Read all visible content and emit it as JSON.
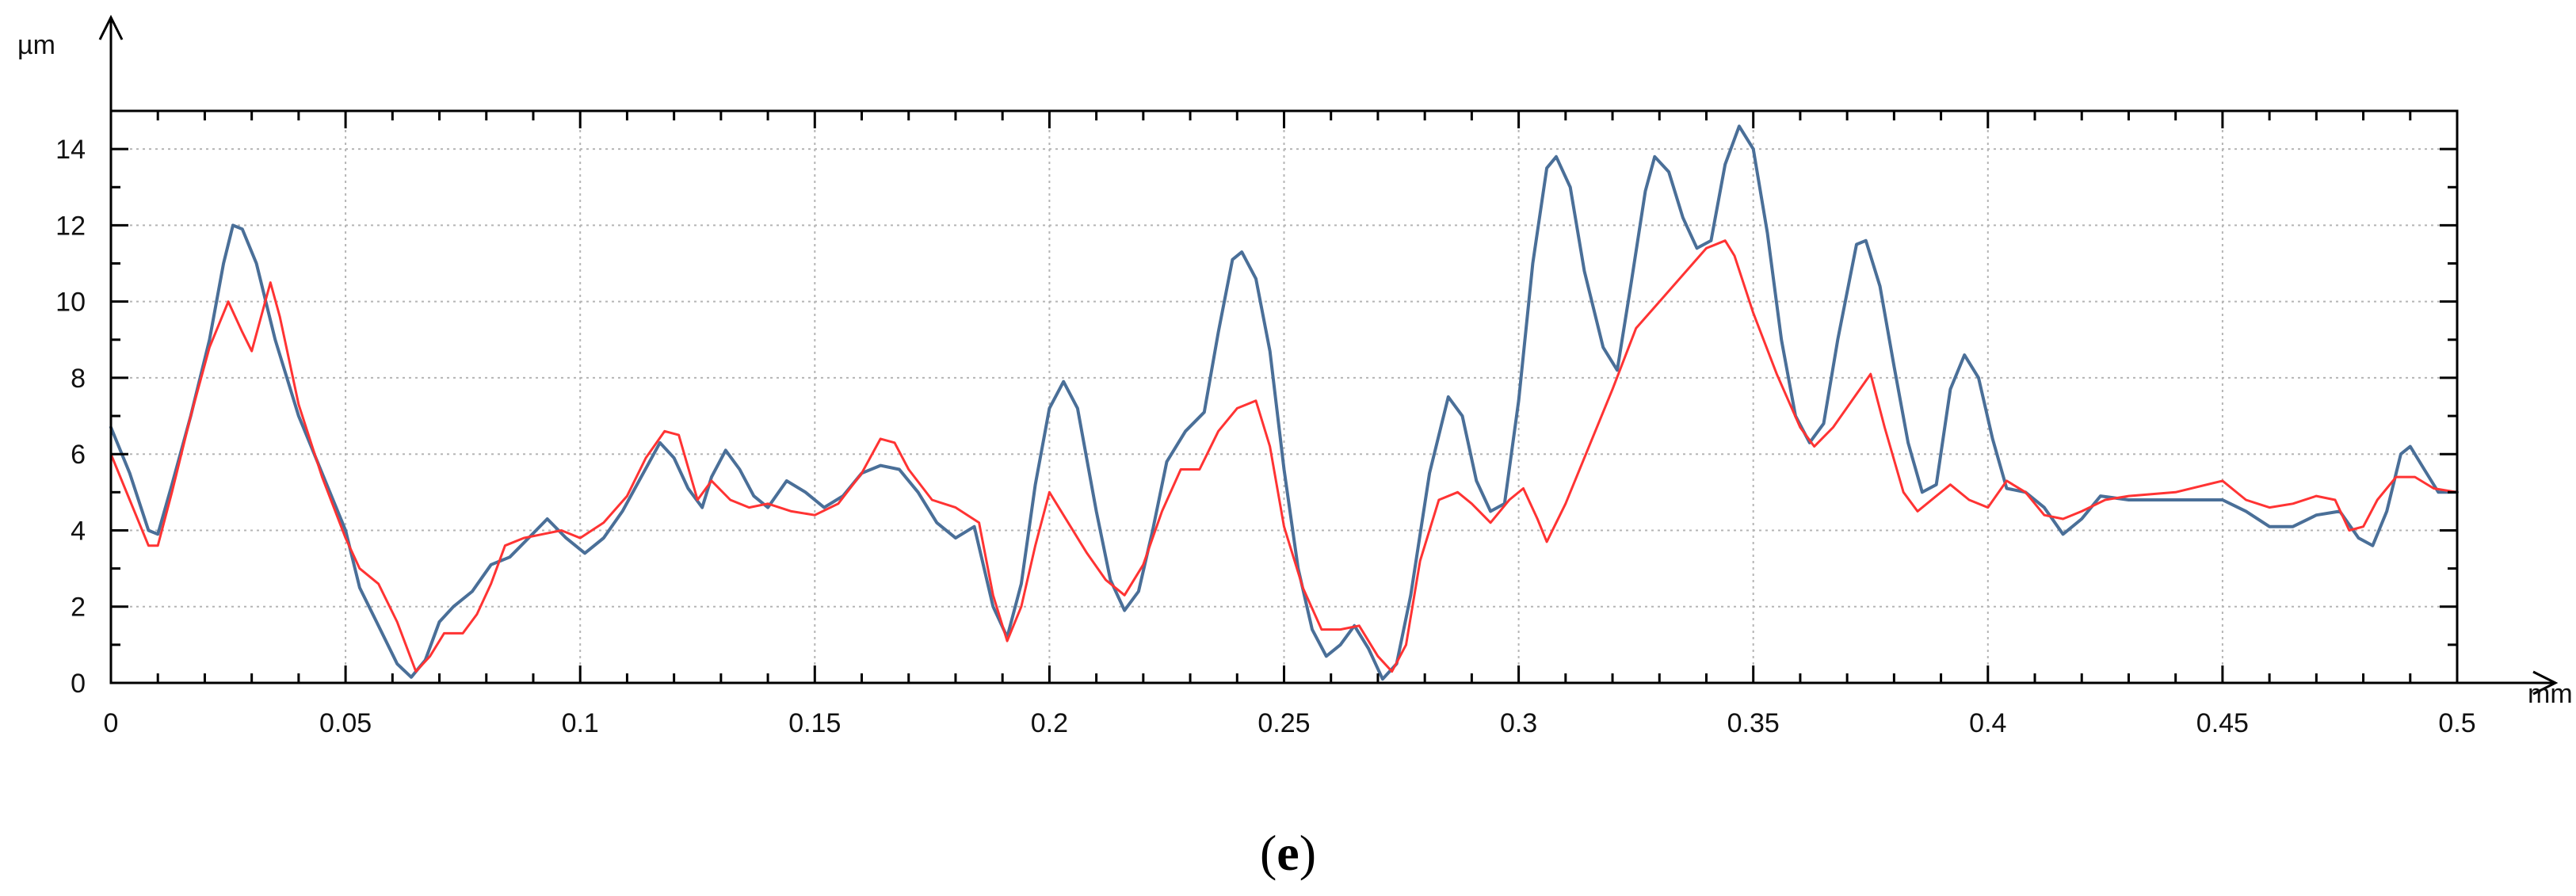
{
  "chart_data": {
    "type": "line",
    "title": "",
    "xlabel": "",
    "ylabel": "",
    "x_unit": "mm",
    "y_unit": "µm",
    "xlim": [
      0,
      0.5
    ],
    "ylim": [
      0,
      15
    ],
    "x_ticks": [
      0,
      0.05,
      0.1,
      0.15,
      0.2,
      0.25,
      0.3,
      0.35,
      0.4,
      0.45,
      0.5
    ],
    "x_tick_labels": [
      "0",
      "0.05",
      "0.1",
      "0.15",
      "0.2",
      "0.25",
      "0.3",
      "0.35",
      "0.4",
      "0.45",
      "0.5"
    ],
    "y_ticks": [
      0,
      2,
      4,
      6,
      8,
      10,
      12,
      14
    ],
    "y_tick_labels": [
      "0",
      "2",
      "4",
      "6",
      "8",
      "10",
      "12",
      "14"
    ],
    "grid": true,
    "legend": "none",
    "series": [
      {
        "color": "#4a6f98",
        "points": [
          [
            0,
            6.7
          ],
          [
            0.004,
            5.5
          ],
          [
            0.008,
            4.0
          ],
          [
            0.01,
            3.9
          ],
          [
            0.013,
            5.2
          ],
          [
            0.017,
            7.0
          ],
          [
            0.021,
            9.0
          ],
          [
            0.024,
            11.0
          ],
          [
            0.026,
            12.0
          ],
          [
            0.028,
            11.9
          ],
          [
            0.031,
            11.0
          ],
          [
            0.035,
            9.0
          ],
          [
            0.04,
            7.0
          ],
          [
            0.045,
            5.5
          ],
          [
            0.05,
            4.0
          ],
          [
            0.053,
            2.5
          ],
          [
            0.057,
            1.5
          ],
          [
            0.061,
            0.5
          ],
          [
            0.064,
            0.15
          ],
          [
            0.067,
            0.6
          ],
          [
            0.07,
            1.6
          ],
          [
            0.073,
            2.0
          ],
          [
            0.077,
            2.4
          ],
          [
            0.081,
            3.1
          ],
          [
            0.085,
            3.3
          ],
          [
            0.089,
            3.8
          ],
          [
            0.093,
            4.3
          ],
          [
            0.097,
            3.8
          ],
          [
            0.101,
            3.4
          ],
          [
            0.105,
            3.8
          ],
          [
            0.109,
            4.5
          ],
          [
            0.113,
            5.4
          ],
          [
            0.117,
            6.3
          ],
          [
            0.12,
            5.9
          ],
          [
            0.123,
            5.1
          ],
          [
            0.126,
            4.6
          ],
          [
            0.128,
            5.4
          ],
          [
            0.131,
            6.1
          ],
          [
            0.134,
            5.6
          ],
          [
            0.137,
            4.9
          ],
          [
            0.14,
            4.6
          ],
          [
            0.144,
            5.3
          ],
          [
            0.148,
            5.0
          ],
          [
            0.152,
            4.6
          ],
          [
            0.156,
            4.9
          ],
          [
            0.16,
            5.5
          ],
          [
            0.164,
            5.7
          ],
          [
            0.168,
            5.6
          ],
          [
            0.172,
            5.0
          ],
          [
            0.176,
            4.2
          ],
          [
            0.18,
            3.8
          ],
          [
            0.184,
            4.1
          ],
          [
            0.188,
            2.0
          ],
          [
            0.191,
            1.2
          ],
          [
            0.194,
            2.6
          ],
          [
            0.197,
            5.2
          ],
          [
            0.2,
            7.2
          ],
          [
            0.203,
            7.9
          ],
          [
            0.206,
            7.2
          ],
          [
            0.21,
            4.5
          ],
          [
            0.213,
            2.7
          ],
          [
            0.216,
            1.9
          ],
          [
            0.219,
            2.4
          ],
          [
            0.222,
            4.0
          ],
          [
            0.225,
            5.8
          ],
          [
            0.229,
            6.6
          ],
          [
            0.233,
            7.1
          ],
          [
            0.236,
            9.2
          ],
          [
            0.239,
            11.1
          ],
          [
            0.241,
            11.3
          ],
          [
            0.244,
            10.6
          ],
          [
            0.247,
            8.7
          ],
          [
            0.25,
            5.6
          ],
          [
            0.253,
            3.0
          ],
          [
            0.256,
            1.4
          ],
          [
            0.259,
            0.7
          ],
          [
            0.262,
            1.0
          ],
          [
            0.265,
            1.5
          ],
          [
            0.268,
            0.9
          ],
          [
            0.271,
            0.1
          ],
          [
            0.274,
            0.5
          ],
          [
            0.277,
            2.3
          ],
          [
            0.281,
            5.5
          ],
          [
            0.285,
            7.5
          ],
          [
            0.288,
            7.0
          ],
          [
            0.291,
            5.3
          ],
          [
            0.294,
            4.5
          ],
          [
            0.297,
            4.7
          ],
          [
            0.3,
            7.4
          ],
          [
            0.303,
            11.0
          ],
          [
            0.306,
            13.5
          ],
          [
            0.308,
            13.8
          ],
          [
            0.311,
            13.0
          ],
          [
            0.314,
            10.8
          ],
          [
            0.318,
            8.8
          ],
          [
            0.321,
            8.2
          ],
          [
            0.324,
            10.5
          ],
          [
            0.327,
            12.9
          ],
          [
            0.329,
            13.8
          ],
          [
            0.332,
            13.4
          ],
          [
            0.335,
            12.2
          ],
          [
            0.338,
            11.4
          ],
          [
            0.341,
            11.6
          ],
          [
            0.344,
            13.6
          ],
          [
            0.347,
            14.6
          ],
          [
            0.35,
            14.0
          ],
          [
            0.353,
            11.8
          ],
          [
            0.356,
            9.0
          ],
          [
            0.359,
            7.0
          ],
          [
            0.362,
            6.3
          ],
          [
            0.365,
            6.8
          ],
          [
            0.368,
            9.0
          ],
          [
            0.372,
            11.5
          ],
          [
            0.374,
            11.6
          ],
          [
            0.377,
            10.4
          ],
          [
            0.38,
            8.3
          ],
          [
            0.383,
            6.3
          ],
          [
            0.386,
            5.0
          ],
          [
            0.389,
            5.2
          ],
          [
            0.392,
            7.7
          ],
          [
            0.395,
            8.6
          ],
          [
            0.398,
            8.0
          ],
          [
            0.401,
            6.4
          ],
          [
            0.404,
            5.1
          ],
          [
            0.408,
            5.0
          ],
          [
            0.412,
            4.6
          ],
          [
            0.416,
            3.9
          ],
          [
            0.42,
            4.3
          ],
          [
            0.424,
            4.9
          ],
          [
            0.43,
            4.8
          ],
          [
            0.44,
            4.8
          ],
          [
            0.45,
            4.8
          ],
          [
            0.455,
            4.5
          ],
          [
            0.46,
            4.1
          ],
          [
            0.465,
            4.1
          ],
          [
            0.47,
            4.4
          ],
          [
            0.475,
            4.5
          ],
          [
            0.479,
            3.8
          ],
          [
            0.482,
            3.6
          ],
          [
            0.485,
            4.5
          ],
          [
            0.488,
            6.0
          ],
          [
            0.49,
            6.2
          ],
          [
            0.493,
            5.6
          ],
          [
            0.496,
            5.0
          ],
          [
            0.5,
            5.0
          ]
        ]
      },
      {
        "color": "#ff3333",
        "points": [
          [
            0,
            6.0
          ],
          [
            0.004,
            4.8
          ],
          [
            0.008,
            3.6
          ],
          [
            0.01,
            3.6
          ],
          [
            0.013,
            5.0
          ],
          [
            0.017,
            7.0
          ],
          [
            0.021,
            8.8
          ],
          [
            0.025,
            10.0
          ],
          [
            0.028,
            9.2
          ],
          [
            0.03,
            8.7
          ],
          [
            0.032,
            9.6
          ],
          [
            0.034,
            10.5
          ],
          [
            0.036,
            9.6
          ],
          [
            0.04,
            7.3
          ],
          [
            0.045,
            5.4
          ],
          [
            0.05,
            3.8
          ],
          [
            0.053,
            3.0
          ],
          [
            0.057,
            2.6
          ],
          [
            0.061,
            1.6
          ],
          [
            0.065,
            0.3
          ],
          [
            0.068,
            0.7
          ],
          [
            0.071,
            1.3
          ],
          [
            0.075,
            1.3
          ],
          [
            0.078,
            1.8
          ],
          [
            0.081,
            2.6
          ],
          [
            0.084,
            3.6
          ],
          [
            0.088,
            3.8
          ],
          [
            0.092,
            3.9
          ],
          [
            0.096,
            4.0
          ],
          [
            0.1,
            3.8
          ],
          [
            0.105,
            4.2
          ],
          [
            0.11,
            4.9
          ],
          [
            0.114,
            5.9
          ],
          [
            0.118,
            6.6
          ],
          [
            0.121,
            6.5
          ],
          [
            0.125,
            4.8
          ],
          [
            0.128,
            5.3
          ],
          [
            0.132,
            4.8
          ],
          [
            0.136,
            4.6
          ],
          [
            0.14,
            4.7
          ],
          [
            0.145,
            4.5
          ],
          [
            0.15,
            4.4
          ],
          [
            0.155,
            4.7
          ],
          [
            0.16,
            5.5
          ],
          [
            0.164,
            6.4
          ],
          [
            0.167,
            6.3
          ],
          [
            0.17,
            5.6
          ],
          [
            0.175,
            4.8
          ],
          [
            0.18,
            4.6
          ],
          [
            0.185,
            4.2
          ],
          [
            0.188,
            2.3
          ],
          [
            0.191,
            1.1
          ],
          [
            0.194,
            2.0
          ],
          [
            0.197,
            3.6
          ],
          [
            0.2,
            5.0
          ],
          [
            0.204,
            4.2
          ],
          [
            0.208,
            3.4
          ],
          [
            0.212,
            2.7
          ],
          [
            0.216,
            2.3
          ],
          [
            0.22,
            3.1
          ],
          [
            0.224,
            4.5
          ],
          [
            0.228,
            5.6
          ],
          [
            0.232,
            5.6
          ],
          [
            0.236,
            6.6
          ],
          [
            0.24,
            7.2
          ],
          [
            0.244,
            7.4
          ],
          [
            0.247,
            6.2
          ],
          [
            0.25,
            4.1
          ],
          [
            0.254,
            2.5
          ],
          [
            0.258,
            1.4
          ],
          [
            0.262,
            1.4
          ],
          [
            0.266,
            1.5
          ],
          [
            0.27,
            0.7
          ],
          [
            0.273,
            0.3
          ],
          [
            0.276,
            1.0
          ],
          [
            0.279,
            3.2
          ],
          [
            0.283,
            4.8
          ],
          [
            0.287,
            5.0
          ],
          [
            0.29,
            4.7
          ],
          [
            0.294,
            4.2
          ],
          [
            0.298,
            4.8
          ],
          [
            0.301,
            5.1
          ],
          [
            0.304,
            4.3
          ],
          [
            0.306,
            3.7
          ],
          [
            0.31,
            4.7
          ],
          [
            0.315,
            6.2
          ],
          [
            0.32,
            7.7
          ],
          [
            0.325,
            9.3
          ],
          [
            0.33,
            10.0
          ],
          [
            0.335,
            10.7
          ],
          [
            0.34,
            11.4
          ],
          [
            0.344,
            11.6
          ],
          [
            0.346,
            11.2
          ],
          [
            0.35,
            9.7
          ],
          [
            0.355,
            8.1
          ],
          [
            0.36,
            6.7
          ],
          [
            0.363,
            6.2
          ],
          [
            0.367,
            6.7
          ],
          [
            0.371,
            7.4
          ],
          [
            0.375,
            8.1
          ],
          [
            0.378,
            6.7
          ],
          [
            0.382,
            5.0
          ],
          [
            0.385,
            4.5
          ],
          [
            0.389,
            4.9
          ],
          [
            0.392,
            5.2
          ],
          [
            0.396,
            4.8
          ],
          [
            0.4,
            4.6
          ],
          [
            0.404,
            5.3
          ],
          [
            0.408,
            5.0
          ],
          [
            0.412,
            4.4
          ],
          [
            0.416,
            4.3
          ],
          [
            0.42,
            4.5
          ],
          [
            0.425,
            4.8
          ],
          [
            0.43,
            4.9
          ],
          [
            0.44,
            5.0
          ],
          [
            0.45,
            5.3
          ],
          [
            0.455,
            4.8
          ],
          [
            0.46,
            4.6
          ],
          [
            0.465,
            4.7
          ],
          [
            0.47,
            4.9
          ],
          [
            0.474,
            4.8
          ],
          [
            0.477,
            4.0
          ],
          [
            0.48,
            4.1
          ],
          [
            0.483,
            4.8
          ],
          [
            0.487,
            5.4
          ],
          [
            0.491,
            5.4
          ],
          [
            0.495,
            5.1
          ],
          [
            0.5,
            5.0
          ]
        ]
      }
    ]
  },
  "caption": {
    "open": "(",
    "letter": "e",
    "close": ")"
  }
}
